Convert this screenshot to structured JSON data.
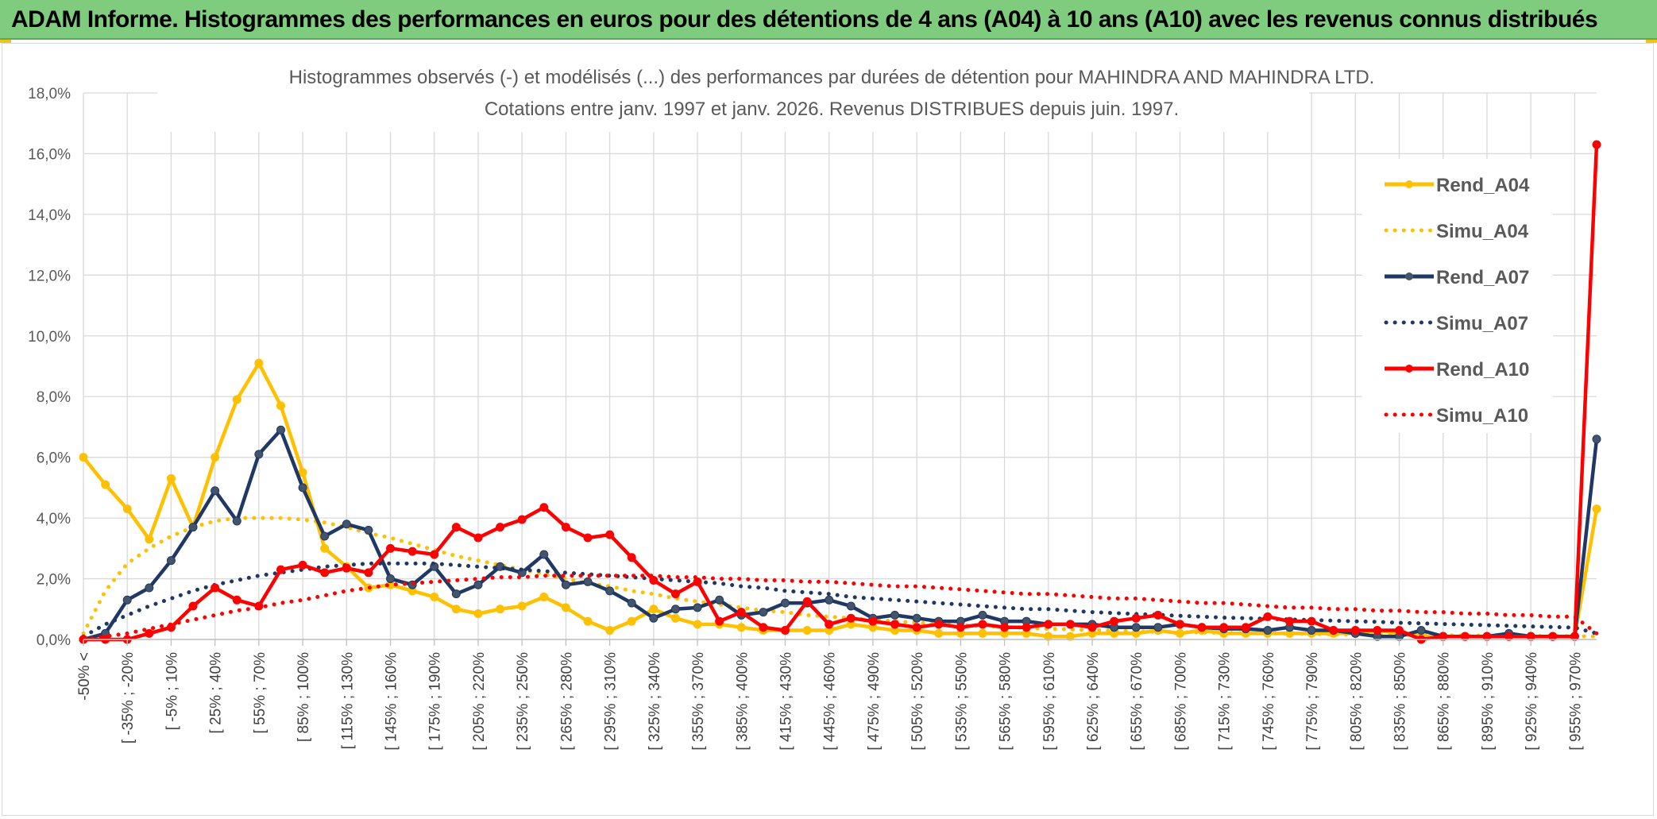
{
  "header": {
    "title": "ADAM Informe. Histogrammes des performances en euros pour des détentions de 4 ans (A04) à 10 ans (A10) avec les revenus connus distribués"
  },
  "colors": {
    "banner": "#7fcc7f",
    "rend_a04": "#ffc000",
    "rend_a07": "#1f3864",
    "rend_a10": "#ff0000",
    "grid": "#d9d9d9"
  },
  "chart_data": {
    "type": "line",
    "title_line1": "Histogrammes observés (-) et modélisés (...) des performances par durées de détention pour MAHINDRA AND MAHINDRA LTD.",
    "title_line2": "Cotations entre janv. 1997 et janv. 2026. Revenus DISTRIBUES depuis juin. 1997.",
    "xlabel": "",
    "ylabel": "",
    "ylim": [
      0,
      18
    ],
    "yticks": [
      "0,0%",
      "2,0%",
      "4,0%",
      "6,0%",
      "8,0%",
      "10,0%",
      "12,0%",
      "14,0%",
      "16,0%",
      "18,0%"
    ],
    "xtick_labels": [
      "-50% <",
      "[ -35% ; -20%",
      "[ -5% ; 10%",
      "[ 25% ; 40%",
      "[ 55% ; 70%",
      "[ 85% ; 100%",
      "[ 115% ; 130%",
      "[ 145% ; 160%",
      "[ 175% ; 190%",
      "[ 205% ; 220%",
      "[ 235% ; 250%",
      "[ 265% ; 280%",
      "[ 295% ; 310%",
      "[ 325% ; 340%",
      "[ 355% ; 370%",
      "[ 385% ; 400%",
      "[ 415% ; 430%",
      "[ 445% ; 460%",
      "[ 475% ; 490%",
      "[ 505% ; 520%",
      "[ 535% ; 550%",
      "[ 565% ; 580%",
      "[ 595% ; 610%",
      "[ 625% ; 640%",
      "[ 655% ; 670%",
      "[ 685% ; 700%",
      "[ 715% ; 730%",
      "[ 745% ; 760%",
      "[ 775% ; 790%",
      "[ 805% ; 820%",
      "[ 835% ; 850%",
      "[ 865% ; 880%",
      "[ 895% ; 910%",
      "[ 925% ; 940%",
      "[ 955% ; 970%"
    ],
    "n_points": 70,
    "legend_position": "right",
    "series": [
      {
        "name": "Rend_A04",
        "style": "solid",
        "color": "#ffc000",
        "values": [
          6.0,
          5.1,
          4.3,
          3.3,
          5.3,
          3.7,
          6.0,
          7.9,
          9.1,
          7.7,
          5.5,
          3.0,
          2.4,
          1.7,
          1.8,
          1.6,
          1.4,
          1.0,
          0.85,
          1.0,
          1.1,
          1.4,
          1.05,
          0.6,
          0.3,
          0.6,
          1.0,
          0.7,
          0.5,
          0.5,
          0.4,
          0.3,
          0.3,
          0.3,
          0.3,
          0.5,
          0.4,
          0.3,
          0.3,
          0.2,
          0.2,
          0.2,
          0.2,
          0.2,
          0.1,
          0.1,
          0.2,
          0.2,
          0.2,
          0.3,
          0.2,
          0.3,
          0.2,
          0.2,
          0.2,
          0.2,
          0.2,
          0.2,
          0.2,
          0.3,
          0.2,
          0.1,
          0.1,
          0.1,
          0.1,
          0.1,
          0.1,
          0.1,
          0.1,
          4.3
        ]
      },
      {
        "name": "Simu_A04",
        "style": "dotted",
        "color": "#ffc000",
        "values": [
          0.2,
          1.6,
          2.5,
          3.0,
          3.4,
          3.7,
          3.9,
          4.0,
          4.0,
          4.0,
          3.95,
          3.85,
          3.7,
          3.5,
          3.35,
          3.15,
          2.95,
          2.75,
          2.6,
          2.45,
          2.3,
          2.15,
          2.0,
          1.85,
          1.75,
          1.6,
          1.5,
          1.35,
          1.25,
          1.15,
          1.05,
          0.95,
          0.9,
          0.8,
          0.75,
          0.7,
          0.65,
          0.6,
          0.55,
          0.5,
          0.47,
          0.44,
          0.41,
          0.38,
          0.35,
          0.33,
          0.31,
          0.29,
          0.27,
          0.25,
          0.24,
          0.23,
          0.22,
          0.21,
          0.2,
          0.19,
          0.18,
          0.17,
          0.16,
          0.15,
          0.15,
          0.14,
          0.14,
          0.13,
          0.13,
          0.12,
          0.12,
          0.11,
          0.11,
          0.1
        ]
      },
      {
        "name": "Rend_A07",
        "style": "solid",
        "color": "#1f3864",
        "values": [
          0.0,
          0.2,
          1.3,
          1.7,
          2.6,
          3.7,
          4.9,
          3.9,
          6.1,
          6.9,
          5.0,
          3.4,
          3.8,
          3.6,
          2.0,
          1.8,
          2.4,
          1.5,
          1.8,
          2.4,
          2.2,
          2.8,
          1.8,
          1.9,
          1.6,
          1.2,
          0.7,
          1.0,
          1.05,
          1.3,
          0.8,
          0.9,
          1.2,
          1.2,
          1.3,
          1.1,
          0.7,
          0.8,
          0.7,
          0.6,
          0.6,
          0.8,
          0.6,
          0.6,
          0.5,
          0.5,
          0.5,
          0.4,
          0.4,
          0.4,
          0.5,
          0.4,
          0.35,
          0.35,
          0.3,
          0.4,
          0.3,
          0.3,
          0.2,
          0.1,
          0.1,
          0.3,
          0.1,
          0.1,
          0.1,
          0.2,
          0.1,
          0.1,
          0.1,
          6.6
        ]
      },
      {
        "name": "Simu_A07",
        "style": "dotted",
        "color": "#1f3864",
        "values": [
          0.1,
          0.5,
          0.8,
          1.1,
          1.35,
          1.6,
          1.8,
          1.95,
          2.1,
          2.2,
          2.3,
          2.4,
          2.45,
          2.5,
          2.5,
          2.5,
          2.5,
          2.45,
          2.4,
          2.35,
          2.3,
          2.25,
          2.2,
          2.15,
          2.1,
          2.05,
          2.0,
          1.95,
          1.9,
          1.85,
          1.75,
          1.7,
          1.6,
          1.55,
          1.5,
          1.4,
          1.35,
          1.3,
          1.25,
          1.2,
          1.15,
          1.1,
          1.05,
          1.0,
          1.0,
          0.95,
          0.9,
          0.87,
          0.84,
          0.81,
          0.78,
          0.75,
          0.72,
          0.7,
          0.68,
          0.66,
          0.64,
          0.62,
          0.6,
          0.58,
          0.55,
          0.53,
          0.51,
          0.49,
          0.47,
          0.45,
          0.43,
          0.41,
          0.39,
          0.2
        ]
      },
      {
        "name": "Rend_A10",
        "style": "solid",
        "color": "#ff0000",
        "values": [
          0.0,
          0.0,
          0.0,
          0.2,
          0.4,
          1.1,
          1.7,
          1.3,
          1.1,
          2.3,
          2.45,
          2.2,
          2.35,
          2.2,
          3.0,
          2.9,
          2.8,
          3.7,
          3.35,
          3.7,
          3.95,
          4.35,
          3.7,
          3.35,
          3.45,
          2.7,
          1.95,
          1.5,
          1.9,
          0.6,
          0.9,
          0.4,
          0.3,
          1.25,
          0.5,
          0.7,
          0.6,
          0.5,
          0.4,
          0.5,
          0.4,
          0.5,
          0.4,
          0.4,
          0.5,
          0.5,
          0.4,
          0.6,
          0.7,
          0.8,
          0.5,
          0.4,
          0.4,
          0.4,
          0.75,
          0.6,
          0.6,
          0.3,
          0.3,
          0.3,
          0.3,
          0.0,
          0.1,
          0.1,
          0.1,
          0.1,
          0.1,
          0.1,
          0.1,
          16.3
        ]
      },
      {
        "name": "Simu_A10",
        "style": "dotted",
        "color": "#ff0000",
        "values": [
          0.0,
          0.1,
          0.2,
          0.35,
          0.5,
          0.65,
          0.8,
          0.95,
          1.05,
          1.2,
          1.3,
          1.45,
          1.6,
          1.7,
          1.8,
          1.85,
          1.9,
          1.95,
          2.0,
          2.05,
          2.05,
          2.1,
          2.1,
          2.1,
          2.1,
          2.1,
          2.1,
          2.05,
          2.05,
          2.0,
          2.0,
          1.95,
          1.95,
          1.9,
          1.9,
          1.85,
          1.8,
          1.75,
          1.75,
          1.7,
          1.65,
          1.6,
          1.55,
          1.5,
          1.5,
          1.45,
          1.4,
          1.35,
          1.35,
          1.3,
          1.25,
          1.2,
          1.2,
          1.15,
          1.1,
          1.05,
          1.05,
          1.0,
          1.0,
          0.95,
          0.95,
          0.9,
          0.9,
          0.85,
          0.85,
          0.8,
          0.8,
          0.75,
          0.75,
          0.2
        ]
      }
    ]
  }
}
